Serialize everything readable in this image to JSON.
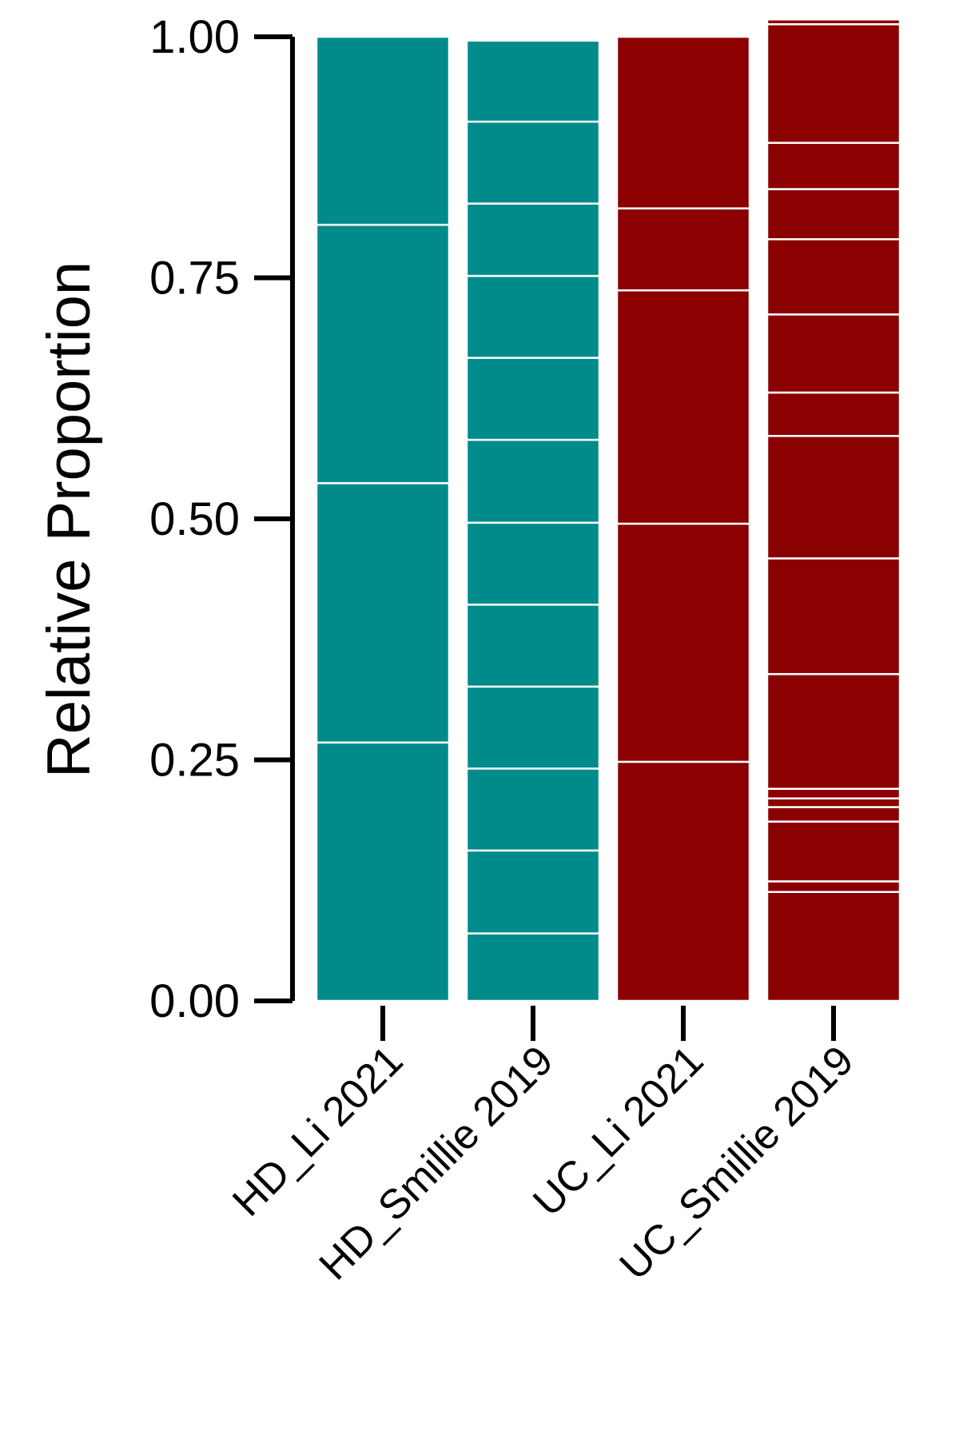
{
  "chart_data": {
    "type": "bar",
    "stacked": true,
    "xlabel": "",
    "ylabel": "Relative Proportion",
    "ylim": [
      0,
      1
    ],
    "yticks": [
      "0.00",
      "0.25",
      "0.50",
      "0.75",
      "1.00"
    ],
    "ytick_values": [
      0,
      0.25,
      0.5,
      0.75,
      1.0
    ],
    "categories": [
      "HD_Li 2021",
      "HD_Smillie 2019",
      "UC_Li 2021",
      "UC_Smillie 2019"
    ],
    "colors": [
      "#008B8B",
      "#008B8B",
      "#8B0000",
      "#8B0000"
    ],
    "segment_color": "#ffffff",
    "grid": false,
    "legend": "none",
    "series_segments": [
      [
        0.268,
        0.269,
        0.268,
        0.195
      ],
      [
        0.07,
        0.086,
        0.085,
        0.085,
        0.085,
        0.085,
        0.086,
        0.085,
        0.085,
        0.075,
        0.085,
        0.084
      ],
      [
        0.248,
        0.247,
        0.242,
        0.085,
        0.178
      ],
      [
        0.113,
        0.011,
        0.062,
        0.015,
        0.009,
        0.01,
        0.119,
        0.12,
        0.127,
        0.045,
        0.081,
        0.078,
        0.052,
        0.048,
        0.123,
        0.005
      ]
    ]
  }
}
